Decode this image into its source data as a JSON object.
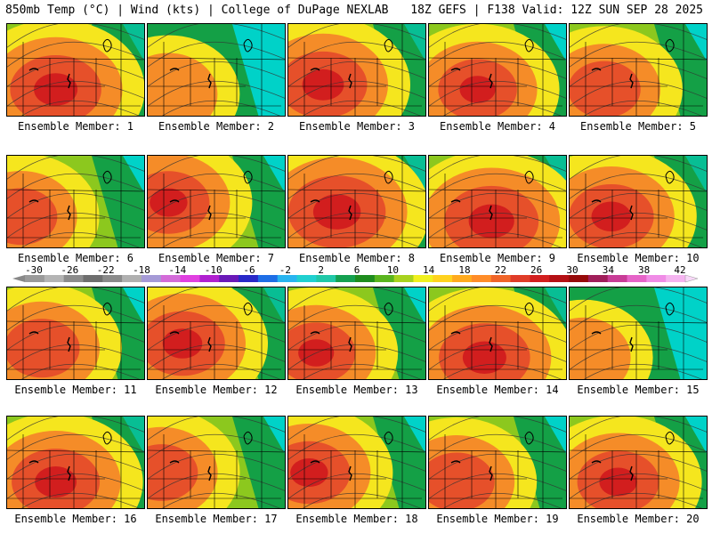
{
  "header": {
    "left": "850mb Temp (°C) | Wind (kts) | College of DuPage NEXLAB",
    "right": "18Z GEFS | F138 Valid: 12Z SUN SEP 28 2025"
  },
  "label_prefix": "Ensemble Member: ",
  "members": [
    {
      "id": 1,
      "label": "Ensemble Member: 1",
      "warmth": 0.75,
      "center": [
        0.35,
        0.7
      ]
    },
    {
      "id": 2,
      "label": "Ensemble Member: 2",
      "warmth": 0.25,
      "center": [
        0.15,
        0.75
      ]
    },
    {
      "id": 3,
      "label": "Ensemble Member: 3",
      "warmth": 0.7,
      "center": [
        0.25,
        0.65
      ]
    },
    {
      "id": 4,
      "label": "Ensemble Member: 4",
      "warmth": 0.55,
      "center": [
        0.35,
        0.7
      ]
    },
    {
      "id": 5,
      "label": "Ensemble Member: 5",
      "warmth": 0.45,
      "center": [
        0.25,
        0.7
      ]
    },
    {
      "id": 6,
      "label": "Ensemble Member: 6",
      "warmth": 0.45,
      "center": [
        0.1,
        0.65
      ]
    },
    {
      "id": 7,
      "label": "Ensemble Member: 7",
      "warmth": 0.6,
      "center": [
        0.15,
        0.5
      ]
    },
    {
      "id": 8,
      "label": "Ensemble Member: 8",
      "warmth": 0.85,
      "center": [
        0.35,
        0.6
      ]
    },
    {
      "id": 9,
      "label": "Ensemble Member: 9",
      "warmth": 0.8,
      "center": [
        0.45,
        0.7
      ]
    },
    {
      "id": 10,
      "label": "Ensemble Member: 10",
      "warmth": 0.65,
      "center": [
        0.3,
        0.65
      ]
    },
    {
      "id": 11,
      "label": "Ensemble Member: 11",
      "warmth": 0.5,
      "center": [
        0.25,
        0.65
      ]
    },
    {
      "id": 12,
      "label": "Ensemble Member: 12",
      "warmth": 0.65,
      "center": [
        0.25,
        0.6
      ]
    },
    {
      "id": 13,
      "label": "Ensemble Member: 13",
      "warmth": 0.55,
      "center": [
        0.2,
        0.7
      ]
    },
    {
      "id": 14,
      "label": "Ensemble Member: 14",
      "warmth": 0.75,
      "center": [
        0.4,
        0.75
      ]
    },
    {
      "id": 15,
      "label": "Ensemble Member: 15",
      "warmth": 0.2,
      "center": [
        0.1,
        0.75
      ]
    },
    {
      "id": 16,
      "label": "Ensemble Member: 16",
      "warmth": 0.7,
      "center": [
        0.35,
        0.7
      ]
    },
    {
      "id": 17,
      "label": "Ensemble Member: 17",
      "warmth": 0.45,
      "center": [
        0.1,
        0.6
      ]
    },
    {
      "id": 18,
      "label": "Ensemble Member: 18",
      "warmth": 0.6,
      "center": [
        0.15,
        0.6
      ]
    },
    {
      "id": 19,
      "label": "Ensemble Member: 19",
      "warmth": 0.5,
      "center": [
        0.2,
        0.7
      ]
    },
    {
      "id": 20,
      "label": "Ensemble Member: 20",
      "warmth": 0.6,
      "center": [
        0.35,
        0.7
      ]
    }
  ],
  "colorbar": {
    "ticks": [
      "-30",
      "-26",
      "-22",
      "-18",
      "-14",
      "-10",
      "-6",
      "-2",
      "2",
      "6",
      "10",
      "14",
      "18",
      "22",
      "26",
      "30",
      "34",
      "38",
      "42"
    ],
    "colors": [
      "#9a9a9a",
      "#b4b4b4",
      "#8c8c8c",
      "#6e6e6e",
      "#8a8a8a",
      "#b0b0b0",
      "#a59ad6",
      "#d36bd8",
      "#e040e0",
      "#b020d0",
      "#6a19b8",
      "#2828c8",
      "#1e6ee6",
      "#28b4f0",
      "#20d0d0",
      "#20c8a8",
      "#14a050",
      "#1e8c1e",
      "#5ab41e",
      "#a8d21e",
      "#f0f01e",
      "#ffd21e",
      "#ffaa1e",
      "#ff8c28",
      "#f06428",
      "#e03c28",
      "#d21e1e",
      "#b40f14",
      "#960a0a",
      "#a01e5a",
      "#c83c96",
      "#e664c8",
      "#f08ce6",
      "#f5b4f0"
    ]
  },
  "palette": {
    "cold": "#00d2c8",
    "cool": "#14a046",
    "mild": "#8cc81e",
    "warm": "#f5e61e",
    "hot": "#f58c28",
    "hotter": "#e6502a",
    "hottest": "#d21e1e"
  }
}
